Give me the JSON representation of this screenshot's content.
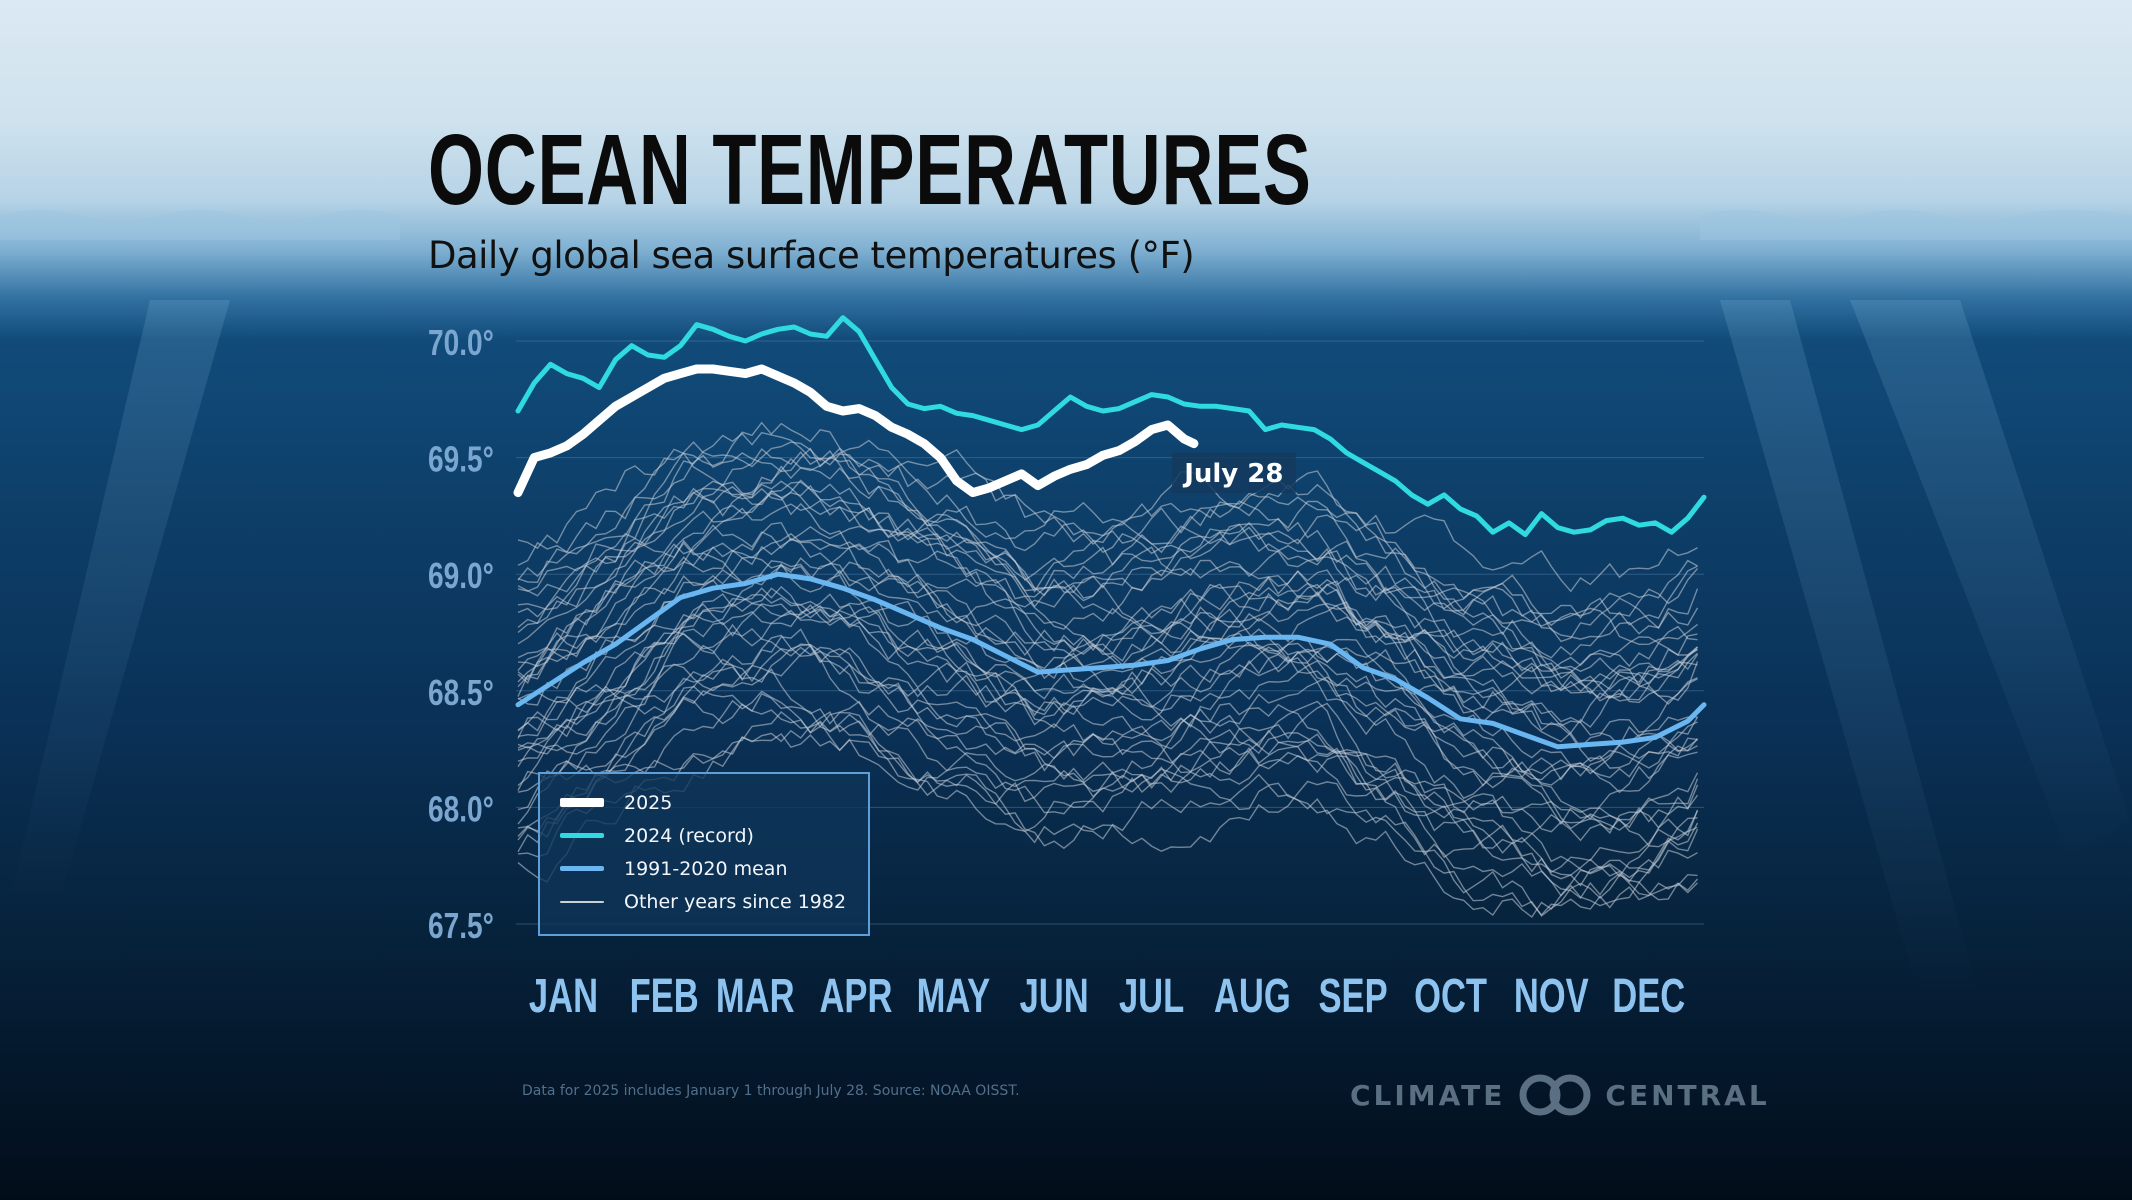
{
  "title": "OCEAN TEMPERATURES",
  "subtitle": "Daily global sea surface temperatures (°F)",
  "annotation": "July 28",
  "source": "Data for 2025 includes January 1 through July 28. Source: NOAA OISST.",
  "logo": {
    "left": "CLIMATE",
    "right": "CENTRAL"
  },
  "colors": {
    "y2025": "#ffffff",
    "y2024": "#2fdbe0",
    "mean": "#6ab6f0",
    "other": "#c8d0d8"
  },
  "legend": [
    {
      "label": "2025",
      "color": "#ffffff",
      "weight": 9
    },
    {
      "label": "2024 (record)",
      "color": "#2fdbe0",
      "weight": 5
    },
    {
      "label": "1991-2020 mean",
      "color": "#6ab6f0",
      "weight": 5
    },
    {
      "label": "Other years since 1982",
      "color": "#c8d0d8",
      "weight": 2
    }
  ],
  "chart_data": {
    "type": "line",
    "title": "OCEAN TEMPERATURES",
    "subtitle": "Daily global sea surface temperatures (°F)",
    "x_unit": "day of year",
    "ylim": [
      67.5,
      70.0
    ],
    "ylabels": [
      "70.0°",
      "69.5°",
      "69.0°",
      "68.5°",
      "68.0°",
      "67.5°"
    ],
    "yticks": [
      70.0,
      69.5,
      69.0,
      68.5,
      68.0,
      67.5
    ],
    "months": [
      "JAN",
      "FEB",
      "MAR",
      "APR",
      "MAY",
      "JUN",
      "JUL",
      "AUG",
      "SEP",
      "OCT",
      "NOV",
      "DEC"
    ],
    "month_days": [
      1,
      32,
      60,
      91,
      121,
      152,
      182,
      213,
      244,
      274,
      305,
      335
    ],
    "grid": true,
    "legend_position": "bottom-left",
    "series": [
      {
        "name": "2025",
        "x": [
          1,
          6,
          11,
          16,
          21,
          26,
          31,
          36,
          41,
          46,
          51,
          56,
          61,
          66,
          71,
          76,
          81,
          86,
          91,
          96,
          101,
          106,
          111,
          116,
          121,
          126,
          131,
          136,
          141,
          146,
          151,
          156,
          161,
          166,
          171,
          176,
          181,
          186,
          191,
          196,
          201,
          206,
          209
        ],
        "y": [
          69.35,
          69.5,
          69.52,
          69.55,
          69.6,
          69.66,
          69.72,
          69.76,
          69.8,
          69.84,
          69.86,
          69.88,
          69.88,
          69.87,
          69.86,
          69.88,
          69.85,
          69.82,
          69.78,
          69.72,
          69.7,
          69.71,
          69.68,
          69.63,
          69.6,
          69.56,
          69.5,
          69.4,
          69.35,
          69.37,
          69.4,
          69.43,
          69.38,
          69.42,
          69.45,
          69.47,
          69.51,
          69.53,
          69.57,
          69.62,
          69.64,
          69.58,
          69.56
        ]
      },
      {
        "name": "2024 (record)",
        "x": [
          1,
          6,
          11,
          16,
          21,
          26,
          31,
          36,
          41,
          46,
          51,
          56,
          61,
          66,
          71,
          76,
          81,
          86,
          91,
          96,
          101,
          106,
          111,
          116,
          121,
          126,
          131,
          136,
          141,
          146,
          151,
          156,
          161,
          166,
          171,
          176,
          181,
          186,
          191,
          196,
          201,
          206,
          211,
          216,
          221,
          226,
          231,
          236,
          241,
          246,
          251,
          256,
          261,
          266,
          271,
          276,
          281,
          286,
          291,
          296,
          301,
          306,
          311,
          316,
          321,
          326,
          331,
          336,
          341,
          346,
          351,
          356,
          361,
          366
        ],
        "y": [
          69.7,
          69.82,
          69.9,
          69.86,
          69.84,
          69.8,
          69.92,
          69.98,
          69.94,
          69.93,
          69.98,
          70.07,
          70.05,
          70.02,
          70.0,
          70.03,
          70.05,
          70.06,
          70.03,
          70.02,
          70.1,
          70.04,
          69.92,
          69.8,
          69.73,
          69.71,
          69.72,
          69.69,
          69.68,
          69.66,
          69.64,
          69.62,
          69.64,
          69.7,
          69.76,
          69.72,
          69.7,
          69.71,
          69.74,
          69.77,
          69.76,
          69.73,
          69.72,
          69.72,
          69.71,
          69.7,
          69.62,
          69.64,
          69.63,
          69.62,
          69.58,
          69.52,
          69.48,
          69.44,
          69.4,
          69.34,
          69.3,
          69.34,
          69.28,
          69.25,
          69.18,
          69.22,
          69.17,
          69.26,
          69.2,
          69.18,
          69.19,
          69.23,
          69.24,
          69.21,
          69.22,
          69.18,
          69.24,
          69.33
        ]
      },
      {
        "name": "1991-2020 mean",
        "x": [
          1,
          11,
          21,
          31,
          41,
          51,
          61,
          71,
          81,
          91,
          101,
          111,
          121,
          131,
          141,
          151,
          161,
          171,
          181,
          191,
          201,
          211,
          221,
          231,
          241,
          251,
          261,
          271,
          281,
          291,
          301,
          311,
          321,
          331,
          341,
          351,
          361,
          366
        ],
        "y": [
          68.44,
          68.53,
          68.62,
          68.7,
          68.8,
          68.9,
          68.94,
          68.96,
          69.0,
          68.98,
          68.94,
          68.89,
          68.83,
          68.77,
          68.72,
          68.65,
          68.58,
          68.59,
          68.6,
          68.61,
          68.63,
          68.68,
          68.72,
          68.73,
          68.73,
          68.7,
          68.6,
          68.55,
          68.47,
          68.38,
          68.36,
          68.31,
          68.26,
          68.27,
          68.28,
          68.3,
          68.37,
          68.44
        ]
      }
    ],
    "other_years_count": 41,
    "annotation": {
      "label": "July 28",
      "day": 209
    }
  }
}
